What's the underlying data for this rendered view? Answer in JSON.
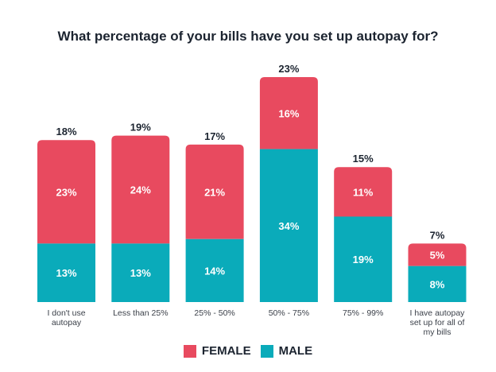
{
  "chart_data": {
    "type": "bar",
    "stacked": true,
    "title": "What percentage of your bills have you set up autopay for?",
    "xlabel": "",
    "ylabel": "",
    "grid": false,
    "legend_position": "bottom",
    "categories": [
      [
        "I don't use",
        "autopay"
      ],
      [
        "Less than 25%"
      ],
      [
        "25% - 50%"
      ],
      [
        "50% - 75%"
      ],
      [
        "75% - 99%"
      ],
      [
        "I have autopay",
        "set up for all of",
        "my bills"
      ]
    ],
    "totals": [
      18,
      19,
      17,
      23,
      15,
      7
    ],
    "total_labels": [
      "18%",
      "19%",
      "17%",
      "23%",
      "15%",
      "7%"
    ],
    "series": [
      {
        "name": "MALE",
        "color": "#0AABBA",
        "values": [
          13,
          13,
          14,
          34,
          19,
          8
        ],
        "labels": [
          "13%",
          "13%",
          "14%",
          "34%",
          "19%",
          "8%"
        ]
      },
      {
        "name": "FEMALE",
        "color": "#E84A5F",
        "values": [
          23,
          24,
          21,
          16,
          11,
          5
        ],
        "labels": [
          "23%",
          "24%",
          "21%",
          "16%",
          "11%",
          "5%"
        ]
      }
    ],
    "legend": [
      {
        "name": "FEMALE",
        "color": "#E84A5F"
      },
      {
        "name": "MALE",
        "color": "#0AABBA"
      }
    ]
  }
}
